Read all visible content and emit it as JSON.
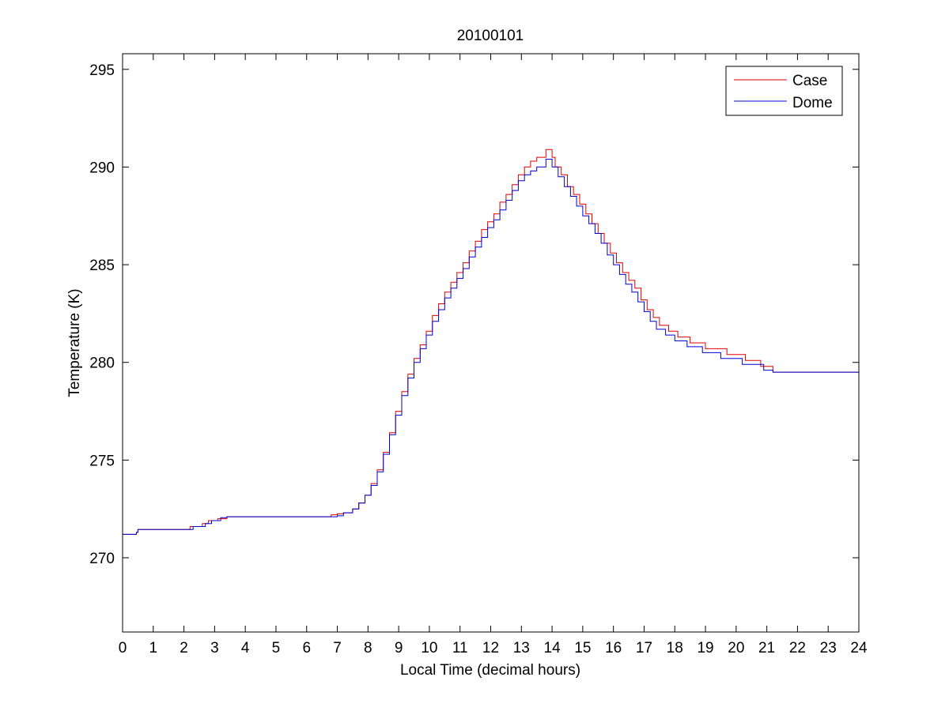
{
  "chart_data": {
    "type": "line",
    "title": "20100101",
    "xlabel": "Local Time (decimal hours)",
    "ylabel": "Temperature (K)",
    "xlim": [
      0,
      24
    ],
    "ylim": [
      266.2,
      295.8
    ],
    "x_ticks": [
      0,
      1,
      2,
      3,
      4,
      5,
      6,
      7,
      8,
      9,
      10,
      11,
      12,
      13,
      14,
      15,
      16,
      17,
      18,
      19,
      20,
      21,
      22,
      23,
      24
    ],
    "x_tick_labels": [
      "0",
      "1",
      "2",
      "3",
      "4",
      "5",
      "6",
      "7",
      "8",
      "9",
      "10",
      "11",
      "12",
      "13",
      "14",
      "15",
      "16",
      "17",
      "18",
      "19",
      "20",
      "21",
      "22",
      "23",
      "24"
    ],
    "y_ticks": [
      270,
      275,
      280,
      285,
      290,
      295
    ],
    "y_tick_labels": [
      "270",
      "275",
      "280",
      "285",
      "290",
      "295"
    ],
    "grid": false,
    "legend_position": "top-right",
    "line_shape": "step",
    "series": [
      {
        "name": "Case",
        "color": "#e00000",
        "points": [
          [
            0,
            271.2
          ],
          [
            0.45,
            271.3
          ],
          [
            0.5,
            271.45
          ],
          [
            2.2,
            271.6
          ],
          [
            2.6,
            271.75
          ],
          [
            2.8,
            271.9
          ],
          [
            3.1,
            272.0
          ],
          [
            3.4,
            272.1
          ],
          [
            6.8,
            272.2
          ],
          [
            7.0,
            272.25
          ],
          [
            7.2,
            272.3
          ],
          [
            7.5,
            272.5
          ],
          [
            7.7,
            272.8
          ],
          [
            7.9,
            273.2
          ],
          [
            8.1,
            273.8
          ],
          [
            8.3,
            274.5
          ],
          [
            8.5,
            275.4
          ],
          [
            8.7,
            276.4
          ],
          [
            8.9,
            277.5
          ],
          [
            9.1,
            278.5
          ],
          [
            9.3,
            279.4
          ],
          [
            9.5,
            280.2
          ],
          [
            9.7,
            280.9
          ],
          [
            9.9,
            281.6
          ],
          [
            10.1,
            282.4
          ],
          [
            10.3,
            283.0
          ],
          [
            10.5,
            283.6
          ],
          [
            10.7,
            284.1
          ],
          [
            10.9,
            284.6
          ],
          [
            11.1,
            285.1
          ],
          [
            11.3,
            285.7
          ],
          [
            11.5,
            286.2
          ],
          [
            11.7,
            286.8
          ],
          [
            11.9,
            287.2
          ],
          [
            12.1,
            287.6
          ],
          [
            12.3,
            288.2
          ],
          [
            12.5,
            288.6
          ],
          [
            12.7,
            289.1
          ],
          [
            12.9,
            289.6
          ],
          [
            13.1,
            290.0
          ],
          [
            13.3,
            290.3
          ],
          [
            13.5,
            290.5
          ],
          [
            13.8,
            290.9
          ],
          [
            14.0,
            290.5
          ],
          [
            14.1,
            290.0
          ],
          [
            14.3,
            289.6
          ],
          [
            14.5,
            289.0
          ],
          [
            14.7,
            288.6
          ],
          [
            14.9,
            288.1
          ],
          [
            15.1,
            287.6
          ],
          [
            15.3,
            287.1
          ],
          [
            15.5,
            286.6
          ],
          [
            15.7,
            286.1
          ],
          [
            15.9,
            285.6
          ],
          [
            16.1,
            285.1
          ],
          [
            16.3,
            284.6
          ],
          [
            16.5,
            284.2
          ],
          [
            16.7,
            283.8
          ],
          [
            16.9,
            283.2
          ],
          [
            17.1,
            282.7
          ],
          [
            17.3,
            282.3
          ],
          [
            17.5,
            281.9
          ],
          [
            17.8,
            281.6
          ],
          [
            18.1,
            281.3
          ],
          [
            18.5,
            281.0
          ],
          [
            19.0,
            280.7
          ],
          [
            19.7,
            280.4
          ],
          [
            20.3,
            280.1
          ],
          [
            20.8,
            279.8
          ],
          [
            21.2,
            279.5
          ],
          [
            24.0,
            279.5
          ]
        ]
      },
      {
        "name": "Dome",
        "color": "#0000d0",
        "points": [
          [
            0,
            271.2
          ],
          [
            0.45,
            271.3
          ],
          [
            0.5,
            271.45
          ],
          [
            2.3,
            271.6
          ],
          [
            2.7,
            271.75
          ],
          [
            2.9,
            271.9
          ],
          [
            3.2,
            272.05
          ],
          [
            3.4,
            272.1
          ],
          [
            7.0,
            272.15
          ],
          [
            7.2,
            272.3
          ],
          [
            7.5,
            272.5
          ],
          [
            7.7,
            272.8
          ],
          [
            7.9,
            273.2
          ],
          [
            8.1,
            273.7
          ],
          [
            8.3,
            274.4
          ],
          [
            8.5,
            275.3
          ],
          [
            8.7,
            276.3
          ],
          [
            8.9,
            277.3
          ],
          [
            9.1,
            278.3
          ],
          [
            9.3,
            279.2
          ],
          [
            9.5,
            280.0
          ],
          [
            9.7,
            280.7
          ],
          [
            9.9,
            281.4
          ],
          [
            10.1,
            282.1
          ],
          [
            10.3,
            282.7
          ],
          [
            10.5,
            283.3
          ],
          [
            10.7,
            283.8
          ],
          [
            10.9,
            284.3
          ],
          [
            11.1,
            284.8
          ],
          [
            11.3,
            285.4
          ],
          [
            11.5,
            285.9
          ],
          [
            11.7,
            286.4
          ],
          [
            11.9,
            286.9
          ],
          [
            12.1,
            287.3
          ],
          [
            12.3,
            287.8
          ],
          [
            12.5,
            288.3
          ],
          [
            12.7,
            288.8
          ],
          [
            12.9,
            289.3
          ],
          [
            13.1,
            289.6
          ],
          [
            13.3,
            289.8
          ],
          [
            13.5,
            290.0
          ],
          [
            13.8,
            290.4
          ],
          [
            14.0,
            290.0
          ],
          [
            14.2,
            289.5
          ],
          [
            14.4,
            289.0
          ],
          [
            14.6,
            288.5
          ],
          [
            14.8,
            288.0
          ],
          [
            15.0,
            287.5
          ],
          [
            15.2,
            287.1
          ],
          [
            15.4,
            286.6
          ],
          [
            15.6,
            286.1
          ],
          [
            15.8,
            285.5
          ],
          [
            16.0,
            285.0
          ],
          [
            16.2,
            284.5
          ],
          [
            16.4,
            284.0
          ],
          [
            16.6,
            283.6
          ],
          [
            16.8,
            283.1
          ],
          [
            17.0,
            282.6
          ],
          [
            17.2,
            282.1
          ],
          [
            17.4,
            281.7
          ],
          [
            17.7,
            281.4
          ],
          [
            18.0,
            281.1
          ],
          [
            18.4,
            280.8
          ],
          [
            18.9,
            280.5
          ],
          [
            19.5,
            280.2
          ],
          [
            20.2,
            279.9
          ],
          [
            20.9,
            279.6
          ],
          [
            21.2,
            279.5
          ],
          [
            24.0,
            279.5
          ]
        ]
      }
    ]
  }
}
